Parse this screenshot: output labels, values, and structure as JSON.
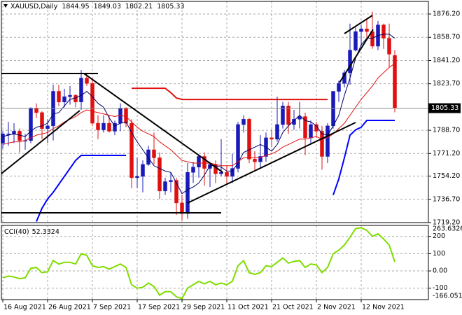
{
  "chart_data": [
    {
      "type": "candlestick",
      "title": "XAUUSD,Daily",
      "categories": [
        "16 Aug 2021",
        null,
        null,
        null,
        null,
        null,
        null,
        null,
        "26 Aug 2021",
        null,
        null,
        null,
        null,
        null,
        null,
        null,
        "7 Sep 2021",
        null,
        null,
        null,
        null,
        null,
        null,
        null,
        "17 Sep 2021",
        null,
        null,
        null,
        null,
        null,
        null,
        null,
        "29 Sep 2021",
        null,
        null,
        null,
        null,
        null,
        null,
        null,
        "11 Oct 2021",
        null,
        null,
        null,
        null,
        null,
        null,
        null,
        "21 Oct 2021",
        null,
        null,
        null,
        null,
        null,
        null,
        null,
        "2 Nov 2021",
        null,
        null,
        null,
        null,
        null,
        null,
        null,
        "12 Nov 2021",
        null,
        null,
        null,
        null,
        null,
        null
      ],
      "open": [
        1779,
        1786,
        1786,
        1788,
        1781,
        1781,
        1805,
        1802,
        1790,
        1792,
        1818,
        1810,
        1814,
        1815,
        1810,
        1828,
        1824,
        1794,
        1789,
        1794,
        1788,
        1794,
        1805,
        1794,
        1753,
        1754,
        1763,
        1774,
        1768,
        1743,
        1750,
        1751,
        1734,
        1726,
        1757,
        1761,
        1769,
        1760,
        1763,
        1756,
        1757,
        1754,
        1760,
        1793,
        1797,
        1767,
        1765,
        1769,
        1783,
        1782,
        1793,
        1807,
        1793,
        1797,
        1799,
        1783,
        1793,
        1788,
        1769,
        1792,
        1818,
        1824,
        1832,
        1849,
        1863,
        1865,
        1863,
        1852,
        1868,
        1858,
        1844.95
      ],
      "high": [
        1788,
        1795,
        1794,
        1790,
        1786,
        1806,
        1809,
        1803,
        1797,
        1823,
        1823,
        1820,
        1822,
        1816,
        1834,
        1832,
        1828,
        1800,
        1800,
        1800,
        1796,
        1809,
        1806,
        1797,
        1768,
        1766,
        1777,
        1787,
        1772,
        1753,
        1757,
        1753,
        1740,
        1764,
        1765,
        1770,
        1772,
        1765,
        1766,
        1782,
        1762,
        1771,
        1795,
        1800,
        1798,
        1773,
        1785,
        1787,
        1789,
        1814,
        1810,
        1810,
        1804,
        1810,
        1802,
        1796,
        1795,
        1792,
        1794,
        1818,
        1826,
        1834,
        1869,
        1866,
        1868,
        1873,
        1878,
        1871,
        1869,
        1869,
        1849.03
      ],
      "low": [
        1775,
        1777,
        1779,
        1772,
        1774,
        1779,
        1798,
        1782,
        1779,
        1781,
        1807,
        1806,
        1808,
        1806,
        1804,
        1822,
        1792,
        1782,
        1787,
        1787,
        1785,
        1788,
        1791,
        1745,
        1745,
        1742,
        1762,
        1763,
        1737,
        1740,
        1742,
        1725,
        1721,
        1722,
        1749,
        1753,
        1747,
        1746,
        1749,
        1754,
        1748,
        1749,
        1757,
        1787,
        1764,
        1759,
        1760,
        1765,
        1776,
        1780,
        1790,
        1786,
        1789,
        1790,
        1770,
        1778,
        1783,
        1759,
        1764,
        1790,
        1810,
        1821,
        1823,
        1848,
        1852,
        1857,
        1850,
        1849,
        1850,
        1836,
        1802.21
      ],
      "close": [
        1786,
        1786,
        1788,
        1781,
        1781,
        1805,
        1802,
        1790,
        1792,
        1818,
        1810,
        1814,
        1815,
        1810,
        1828,
        1824,
        1794,
        1789,
        1794,
        1788,
        1794,
        1805,
        1794,
        1753,
        1754,
        1763,
        1774,
        1768,
        1743,
        1750,
        1751,
        1734,
        1726,
        1757,
        1761,
        1769,
        1760,
        1763,
        1756,
        1757,
        1754,
        1760,
        1793,
        1797,
        1767,
        1765,
        1769,
        1783,
        1782,
        1793,
        1807,
        1793,
        1797,
        1799,
        1783,
        1793,
        1788,
        1769,
        1792,
        1818,
        1824,
        1832,
        1849,
        1863,
        1865,
        1863,
        1852,
        1868,
        1858,
        1846,
        1805.33
      ],
      "up_color": "#1a1ab8",
      "down_color": "#e01010",
      "series": [
        {
          "color": "#000066",
          "values": [
            1784,
            1785,
            1786,
            1785,
            1784,
            1788,
            1791,
            1792,
            1794,
            1801,
            1802,
            1807,
            1812,
            1813,
            1815,
            1818,
            1814,
            1809,
            1806,
            1798,
            1792,
            1794,
            1795,
            1787,
            1780,
            1774,
            1768,
            1762,
            1760,
            1758,
            1757,
            1749,
            1741,
            1744,
            1746,
            1749,
            1755,
            1762,
            1762,
            1761,
            1758,
            1758,
            1764,
            1772,
            1774,
            1776,
            1778,
            1776,
            1773,
            1778,
            1787,
            1792,
            1796,
            1800,
            1796,
            1795,
            1792,
            1786,
            1785,
            1792,
            1800,
            1815,
            1828,
            1843,
            1853,
            1858,
            1858,
            1860,
            1861,
            1861,
            1858
          ]
        },
        {
          "color": "#e01010",
          "values": [
            1778,
            1779,
            1780,
            1780,
            1781,
            1783,
            1785,
            1786,
            1787,
            1790,
            1792,
            1795,
            1797,
            1799,
            1802,
            1804,
            1803,
            1802,
            1801,
            1800,
            1799,
            1800,
            1799,
            1795,
            1791,
            1788,
            1786,
            1784,
            1780,
            1777,
            1774,
            1770,
            1766,
            1765,
            1764,
            1764,
            1764,
            1764,
            1763,
            1762,
            1762,
            1762,
            1765,
            1768,
            1768,
            1768,
            1768,
            1770,
            1771,
            1773,
            1776,
            1778,
            1780,
            1782,
            1782,
            1783,
            1784,
            1782,
            1783,
            1786,
            1790,
            1794,
            1800,
            1806,
            1812,
            1817,
            1822,
            1828,
            1832,
            1836,
            1839
          ]
        },
        {
          "color": "#0000ff",
          "values": [
            null,
            null,
            null,
            null,
            null,
            null,
            1720,
            1730,
            1737,
            1742,
            1748,
            1754,
            1760,
            1766,
            1769.8,
            1769.8,
            1769.8,
            1769.8,
            1769.8,
            1769.8,
            1769.8,
            1769.8,
            1769.8,
            null,
            null,
            null,
            null,
            null,
            null,
            null,
            null,
            null,
            null,
            null,
            null,
            null,
            null,
            null,
            null,
            null,
            null,
            null,
            null,
            null,
            null,
            null,
            null,
            null,
            null,
            null,
            null,
            null,
            null,
            null,
            null,
            null,
            null,
            null,
            null,
            1740,
            1752,
            1768,
            1785,
            1789,
            1791,
            1796.1,
            1796.1,
            1796.1,
            1796.1,
            1796.1,
            1796.1
          ]
        },
        {
          "color": "#e01010",
          "values": [
            null,
            null,
            null,
            null,
            null,
            null,
            null,
            null,
            null,
            null,
            null,
            null,
            null,
            null,
            null,
            null,
            null,
            null,
            null,
            null,
            null,
            null,
            null,
            1820.3,
            1820.3,
            1820.3,
            1820.3,
            1820.3,
            1820.3,
            1820.3,
            1817,
            1813,
            1811.9,
            1811.9,
            1811.9,
            1811.9,
            1811.9,
            1811.9,
            1811.9,
            1811.9,
            1811.9,
            1811.9,
            1811.9,
            1811.9,
            1811.9,
            1811.9,
            1811.9,
            1811.9,
            1811.9,
            1811.9,
            1811.9,
            1811.9,
            1811.9,
            1811.9,
            1811.9,
            1811.9,
            1811.9,
            1811.9,
            1811.9,
            null,
            null,
            null,
            null,
            null,
            null,
            null,
            null,
            null,
            null,
            null,
            null
          ]
        }
      ],
      "ylim": [
        1719.2,
        1885.7
      ],
      "yticks": [
        {
          "value": 1876.2,
          "label": "1876.20"
        },
        {
          "value": 1858.7,
          "label": "1858.70"
        },
        {
          "value": 1841.2,
          "label": "1841.20"
        },
        {
          "value": 1823.7,
          "label": "1823.70"
        },
        {
          "value": 1788.7,
          "label": "1788.70"
        },
        {
          "value": 1771.2,
          "label": "1771.20"
        },
        {
          "value": 1754.2,
          "label": "1754.20"
        },
        {
          "value": 1736.7,
          "label": "1736.70"
        },
        {
          "value": 1719.2,
          "label": "1719.20"
        }
      ],
      "grid": true
    },
    {
      "type": "line",
      "title": "CCI(40)",
      "color": "#7fdd00",
      "values": [
        -40,
        -30,
        -35,
        -45,
        -40,
        15,
        20,
        -10,
        -5,
        60,
        40,
        50,
        50,
        40,
        100,
        90,
        30,
        20,
        25,
        10,
        25,
        40,
        20,
        -80,
        -100,
        -95,
        -70,
        -90,
        -140,
        -120,
        -120,
        -150,
        -160,
        -100,
        -80,
        -60,
        -75,
        -60,
        -80,
        -70,
        -80,
        -60,
        30,
        60,
        -10,
        -20,
        -10,
        30,
        25,
        50,
        75,
        45,
        55,
        60,
        20,
        40,
        35,
        -10,
        20,
        100,
        120,
        150,
        195,
        245,
        250,
        235,
        200,
        215,
        185,
        150,
        52.3324
      ],
      "ylim": [
        -166.051,
        263.6326
      ],
      "yticks": [
        200,
        100,
        {
          "value": 0,
          "label": "0.00"
        },
        -100
      ],
      "grid": true
    }
  ]
}
